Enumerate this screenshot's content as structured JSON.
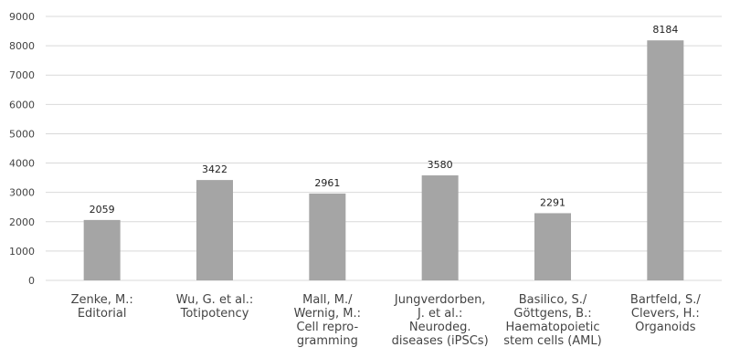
{
  "chart_data": {
    "type": "bar",
    "categories": [
      [
        "Zenke, M.:",
        "Editorial"
      ],
      [
        "Wu, G. et al.:",
        "Totipotency"
      ],
      [
        "Mall, M./",
        "Wernig, M.:",
        "Cell repro-",
        "gramming"
      ],
      [
        "Jungverdorben,",
        "J. et al.:",
        "Neurodeg.",
        "diseases (iPSCs)"
      ],
      [
        "Basilico, S./",
        "Göttgens, B.:",
        "Haematopoietic",
        "stem cells (AML)"
      ],
      [
        "Bartfeld, S./",
        "Clevers, H.:",
        "Organoids"
      ]
    ],
    "values": [
      2059,
      3422,
      2961,
      3580,
      2291,
      8184
    ],
    "ylim": [
      0,
      9000
    ],
    "yticks": [
      0,
      1000,
      2000,
      3000,
      4000,
      5000,
      6000,
      7000,
      8000,
      9000
    ],
    "grid": true,
    "bar_color": "#a5a5a5",
    "grid_color": "#d9d9d9"
  }
}
